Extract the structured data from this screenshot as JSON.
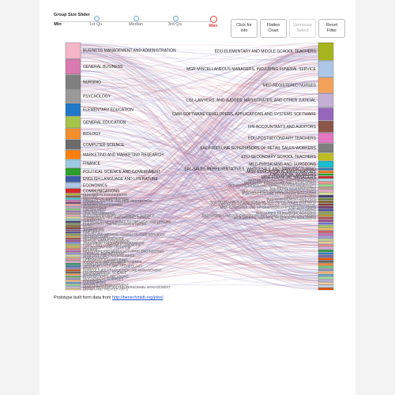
{
  "slider": {
    "title": "Group Size Slider",
    "stops": [
      {
        "label": "Min"
      },
      {
        "label": "1st Qu."
      },
      {
        "label": "Median"
      },
      {
        "label": "3rd Qu."
      },
      {
        "label": "Max",
        "active": true
      }
    ]
  },
  "buttons": {
    "info": "Click for info",
    "flatten": "Flatten Chart",
    "unmouse": "Unmouse Select",
    "reset": "Reset Filter"
  },
  "majors": [
    {
      "label": "BUSINESS MANAGEMENT AND ADMINISTRATION",
      "color": "#f4b6c8"
    },
    {
      "label": "GENERAL BUSINESS",
      "color": "#d97ab0"
    },
    {
      "label": "NURSING",
      "color": "#7f7f7f"
    },
    {
      "label": "PSYCHOLOGY",
      "color": "#999999"
    },
    {
      "label": "ELEMENTARY EDUCATION",
      "color": "#1f78c8"
    },
    {
      "label": "GENERAL EDUCATION",
      "color": "#a6c44a"
    },
    {
      "label": "BIOLOGY",
      "color": "#f28e2b"
    },
    {
      "label": "COMPUTER SCIENCE",
      "color": "#6b6b6b"
    },
    {
      "label": "MARKETING AND MARKETING RESEARCH",
      "color": "#ff7f0e"
    },
    {
      "label": "FINANCE",
      "color": "#9ecae1"
    },
    {
      "label": "POLITICAL SCIENCE AND GOVERNMENT",
      "color": "#2ca02c"
    },
    {
      "label": "ENGLISH LANGUAGE AND LITERATURE",
      "color": "#3b5ba5"
    },
    {
      "label": "ECONOMICS",
      "color": "#aec7e8"
    },
    {
      "label": "COMMUNICATIONS",
      "color": "#d62728"
    },
    {
      "label": "ELECTRICAL ENGINEERING",
      "color": "#bcbd22"
    },
    {
      "label": "HISTORY",
      "color": "#8c564b"
    },
    {
      "label": "MECHANICAL ENGINEERING",
      "color": "#17becf"
    },
    {
      "label": "CRIMINAL JUSTICE AND FIRE PROTECTION",
      "color": "#e377c2"
    },
    {
      "label": "SOCIOLOGY",
      "color": "#7b4173"
    },
    {
      "label": "GENERAL ENGINEERING",
      "color": "#ff9896"
    },
    {
      "label": "MATHEMATICS",
      "color": "#c5b0d5"
    },
    {
      "label": "LIBERAL ARTS",
      "color": "#98df8a"
    },
    {
      "label": "ACCOUNTING",
      "color": "#9467bd"
    },
    {
      "label": "CIVIL ENGINEERING",
      "color": "#c49c94"
    },
    {
      "label": "MULTI-DISCIPLINARY OR GENERAL SCIENCE",
      "color": "#f7b6d2"
    },
    {
      "label": "COMMERCIAL ART AND GRAPHIC DESIGN",
      "color": "#dbdb8d"
    },
    {
      "label": "CHEMISTRY",
      "color": "#9edae5"
    },
    {
      "label": "PHYSICAL FITNESS PARKS RECREATION AND LEISURE",
      "color": "#393b79"
    },
    {
      "label": "PHILOSOPHY AND RELIGIOUS STUDIES",
      "color": "#637939"
    },
    {
      "label": "MUSIC",
      "color": "#8c6d31"
    },
    {
      "label": "MASS MEDIA",
      "color": "#843c39"
    },
    {
      "label": "JOURNALISM",
      "color": "#7b4173"
    },
    {
      "label": "FINE ARTS",
      "color": "#5254a3"
    },
    {
      "label": "HEALTH AND MEDICAL ADMINISTRATIVE SERVICES",
      "color": "#8ca252"
    },
    {
      "label": "ARCHITECTURE",
      "color": "#bd9e39"
    },
    {
      "label": "INFORMATION SCIENCES",
      "color": "#ad494a"
    },
    {
      "label": "SPECIAL NEEDS EDUCATION",
      "color": "#a55194"
    },
    {
      "label": "TREATMENT THERAPY PROFESSIONS",
      "color": "#6b6ecf"
    },
    {
      "label": "FAMILY AND CONSUMER SCIENCES",
      "color": "#b5cf6b"
    },
    {
      "label": "ART HISTORY AND CRITICISM",
      "color": "#e7ba52"
    },
    {
      "label": "PHYSICS",
      "color": "#d6616b"
    },
    {
      "label": "INDUSTRIAL AND MANUFACTURING ENGINEERING",
      "color": "#ce6dbd"
    },
    {
      "label": "CHEMICAL ENGINEERING",
      "color": "#9c9ede"
    },
    {
      "label": "GEOLOGY AND EARTH SCIENCE",
      "color": "#cedb9c"
    },
    {
      "label": "PUBLIC POLICY",
      "color": "#e7cb94"
    },
    {
      "label": "AEROSPACE ENGINEERING",
      "color": "#e7969c"
    },
    {
      "label": "STATISTICS AND DECISION SCIENCE",
      "color": "#de9ed6"
    },
    {
      "label": "COMPUTER ENGINEERING",
      "color": "#31a354"
    },
    {
      "label": "ANTHROPOLOGY AND ARCHEOLOGY",
      "color": "#3182bd"
    },
    {
      "label": "ZOOLOGY",
      "color": "#756bb1"
    },
    {
      "label": "AGRICULTURE PRODUCTION AND MANAGEMENT",
      "color": "#e6550d"
    },
    {
      "label": "ENVIRONMENTAL SCIENCE",
      "color": "#636363"
    },
    {
      "label": "MICROBIOLOGY",
      "color": "#fd8d3c"
    },
    {
      "label": "INTERNATIONAL RELATIONS",
      "color": "#74c476"
    },
    {
      "label": "BIOCHEMICAL SCIENCES",
      "color": "#9e9ac8"
    },
    {
      "label": "PHARMACY",
      "color": "#fdae6b"
    },
    {
      "label": "SOCIAL WORK",
      "color": "#6baed6"
    },
    {
      "label": "HOSPITALITY MANAGEMENT",
      "color": "#a1d99b"
    },
    {
      "label": "HUMAN RESOURCES AND PERSONNEL MANAGEMENT",
      "color": "#bcbddc"
    },
    {
      "label": "DRAMA AND THEATER ARTS",
      "color": "#fdd0a2"
    }
  ],
  "occupations": [
    {
      "label": "EDU-ELEMENTARY AND MIDDLE SCHOOL TEACHERS",
      "color": "#a6b51e"
    },
    {
      "label": "MGR-MISCELLANEOUS MANAGERS, INCLUDING FUNERAL SERVICE",
      "color": "#aec7e8"
    },
    {
      "label": "MED-REGISTERED NURSES",
      "color": "#f4a259"
    },
    {
      "label": "LGL-LAWYERS, AND JUDGES, MAGISTRATES, AND OTHER JUDICIAL",
      "color": "#c5b0d5"
    },
    {
      "label": "CMM-SOFTWARE DEVELOPERS, APPLICATIONS AND SYSTEMS SOFTWARE",
      "color": "#9467bd"
    },
    {
      "label": "FIN-ACCOUNTANTS AND AUDITORS",
      "color": "#8c564b"
    },
    {
      "label": "EDU-POSTSECONDARY TEACHERS",
      "color": "#e377c2"
    },
    {
      "label": "SAL-FIRST-LINE SUPERVISORS OF RETAIL SALES WORKERS",
      "color": "#7f7f7f"
    },
    {
      "label": "EDU-SECONDARY SCHOOL TEACHERS",
      "color": "#bcbd22"
    },
    {
      "label": "MED-PHYSICIANS AND SURGEONS",
      "color": "#17becf"
    },
    {
      "label": "SAL-SALES REPRESENTATIVES, WHOLESALE AND MANUFACTURING",
      "color": "#1f77b4"
    },
    {
      "label": "MGR-EDUCATION ADMINISTRATORS",
      "color": "#ff7f0e"
    },
    {
      "label": "CMS-SOCIAL WORKERS",
      "color": "#2ca02c"
    },
    {
      "label": "MGR-FINANCIAL MANAGERS",
      "color": "#d62728"
    },
    {
      "label": "MGR-MARKETING AND SALES MANAGERS",
      "color": "#9edae5"
    },
    {
      "label": "MGR-CHIEF EXECUTIVES AND LEGISLATORS",
      "color": "#ff9896"
    },
    {
      "label": "OFF-SECRETARIES AND ADMINISTRATIVE ASSISTANTS",
      "color": "#98df8a"
    },
    {
      "label": "SAL-RETAIL SALESPERSONS",
      "color": "#c49c94"
    },
    {
      "label": "OFF-CUSTOMER SERVICE REPRESENTATIVES",
      "color": "#f7b6d2"
    },
    {
      "label": "MGR-GENERAL AND OPERATIONS MANAGERS",
      "color": "#dbdb8d"
    },
    {
      "label": "CMS-COUNSELORS",
      "color": "#393b79"
    },
    {
      "label": "BUS-MANAGEMENT ANALYSTS",
      "color": "#637939"
    },
    {
      "label": "SAL-FIRST-LINE SUPERVISORS OF NON-RETAIL SALES WORKERS",
      "color": "#8c6d31"
    },
    {
      "label": "OFF-FIRST-LINE SUPERVISORS OF OFFICE AND ADMINISTRATIVE",
      "color": "#843c39"
    },
    {
      "label": "MGR-COMPUTER AND INFORMATION SYSTEMS MANAGERS",
      "color": "#7b4173"
    },
    {
      "label": "ENG-ENGINEERS",
      "color": "#5254a3"
    },
    {
      "label": "BUS-HUMAN RESOURCES WORKERS",
      "color": "#8ca252"
    },
    {
      "label": "ENG-MISCELLANEOUS ENGINEERS, INCLUDING NUCLEAR ENGINEERS",
      "color": "#bd9e39"
    },
    {
      "label": "MGR-MEDICAL AND HEALTH SERVICES MANAGERS",
      "color": "#ad494a"
    },
    {
      "label": "",
      "color": "#a55194"
    },
    {
      "label": "",
      "color": "#6b6ecf"
    },
    {
      "label": "",
      "color": "#b5cf6b"
    },
    {
      "label": "",
      "color": "#e7ba52"
    },
    {
      "label": "",
      "color": "#d6616b"
    },
    {
      "label": "",
      "color": "#ce6dbd"
    },
    {
      "label": "",
      "color": "#9c9ede"
    },
    {
      "label": "",
      "color": "#cedb9c"
    },
    {
      "label": "",
      "color": "#e7cb94"
    },
    {
      "label": "",
      "color": "#e7969c"
    },
    {
      "label": "",
      "color": "#de9ed6"
    },
    {
      "label": "",
      "color": "#31a354"
    },
    {
      "label": "",
      "color": "#3182bd"
    },
    {
      "label": "",
      "color": "#756bb1"
    },
    {
      "label": "",
      "color": "#e6550d"
    },
    {
      "label": "",
      "color": "#636363"
    },
    {
      "label": "",
      "color": "#fd8d3c"
    },
    {
      "label": "",
      "color": "#74c476"
    },
    {
      "label": "",
      "color": "#9e9ac8"
    },
    {
      "label": "",
      "color": "#fdae6b"
    },
    {
      "label": "",
      "color": "#6baed6"
    },
    {
      "label": "",
      "color": "#a1d99b"
    },
    {
      "label": "",
      "color": "#bcbddc"
    },
    {
      "label": "",
      "color": "#fdd0a2"
    },
    {
      "label": "",
      "color": "#c6dbef"
    },
    {
      "label": "",
      "color": "#e6550d"
    }
  ],
  "footer": {
    "prefix": "Prototype built form data from ",
    "link_text": "http://benschmidt.org/jobs/"
  }
}
